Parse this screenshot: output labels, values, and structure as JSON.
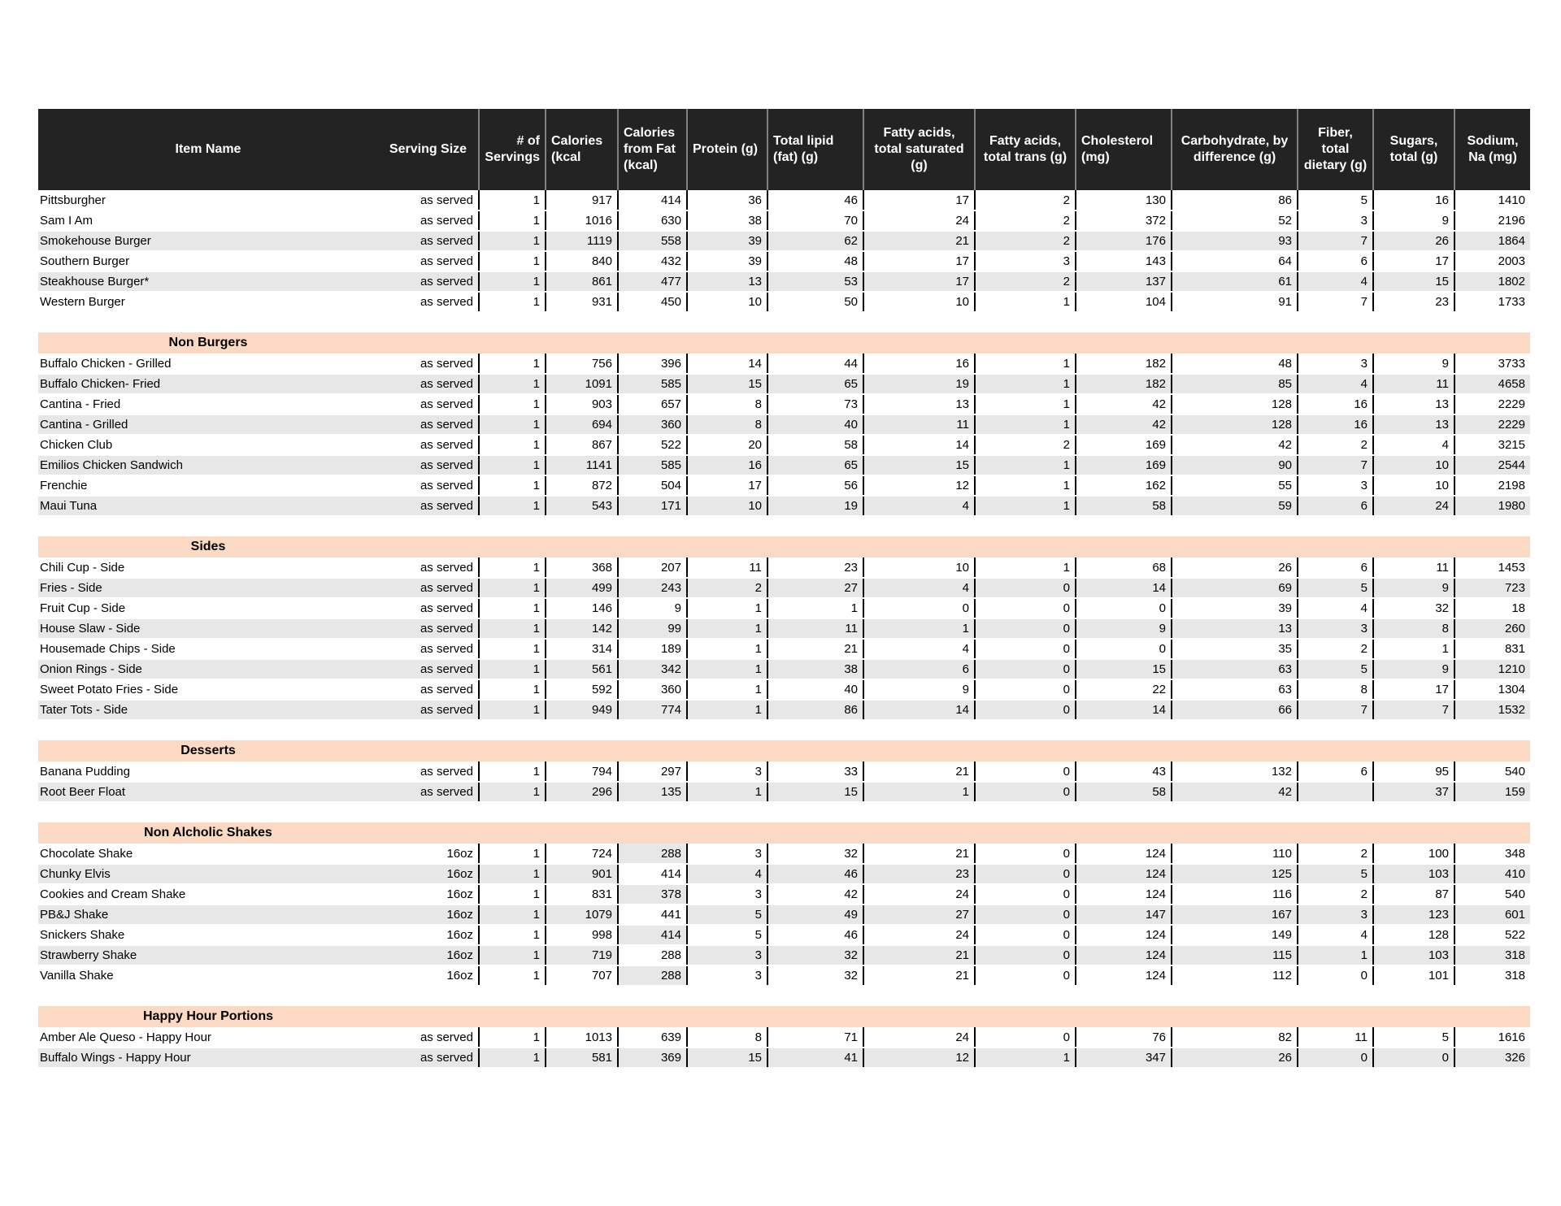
{
  "colors": {
    "header_bg": "#232323",
    "header_text": "#ffffff",
    "row_stripe": "#e7e7e7",
    "section_header_bg": "#fbd9c3",
    "body_divider": "#000000",
    "header_divider": "#808080"
  },
  "table": {
    "columns": [
      "Item Name",
      "Serving Size",
      "# of Servings",
      "Calories (kcal",
      "Calories from Fat (kcal)",
      "Protein (g)",
      "Total lipid (fat) (g)",
      "Fatty acids, total saturated (g)",
      "Fatty acids, total trans (g)",
      "Cholesterol (mg)",
      "Carbohydrate, by difference (g)",
      "Fiber, total dietary (g)",
      "Sugars, total (g)",
      "Sodium, Na (mg)"
    ],
    "sections": [
      {
        "name": "",
        "rows": [
          {
            "item": "Pittsburgher",
            "serving": "as served",
            "shaded": false,
            "values": [
              "1",
              "917",
              "414",
              "36",
              "46",
              "17",
              "2",
              "130",
              "86",
              "5",
              "16",
              "1410"
            ]
          },
          {
            "item": "Sam I Am",
            "serving": "as served",
            "shaded": false,
            "values": [
              "1",
              "1016",
              "630",
              "38",
              "70",
              "24",
              "2",
              "372",
              "52",
              "3",
              "9",
              "2196"
            ]
          },
          {
            "item": "Smokehouse Burger",
            "serving": "as served",
            "shaded": true,
            "values": [
              "1",
              "1119",
              "558",
              "39",
              "62",
              "21",
              "2",
              "176",
              "93",
              "7",
              "26",
              "1864"
            ]
          },
          {
            "item": "Southern Burger",
            "serving": "as served",
            "shaded": false,
            "values": [
              "1",
              "840",
              "432",
              "39",
              "48",
              "17",
              "3",
              "143",
              "64",
              "6",
              "17",
              "2003"
            ]
          },
          {
            "item": "Steakhouse Burger*",
            "serving": "as served",
            "shaded": true,
            "values": [
              "1",
              "861",
              "477",
              "13",
              "53",
              "17",
              "2",
              "137",
              "61",
              "4",
              "15",
              "1802"
            ]
          },
          {
            "item": "Western Burger",
            "serving": "as served",
            "shaded": false,
            "values": [
              "1",
              "931",
              "450",
              "10",
              "50",
              "10",
              "1",
              "104",
              "91",
              "7",
              "23",
              "1733"
            ]
          }
        ]
      },
      {
        "name": "Non Burgers",
        "rows": [
          {
            "item": "Buffalo Chicken - Grilled",
            "serving": "as served",
            "shaded": false,
            "values": [
              "1",
              "756",
              "396",
              "14",
              "44",
              "16",
              "1",
              "182",
              "48",
              "3",
              "9",
              "3733"
            ]
          },
          {
            "item": "Buffalo Chicken- Fried",
            "serving": "as served",
            "shaded": true,
            "values": [
              "1",
              "1091",
              "585",
              "15",
              "65",
              "19",
              "1",
              "182",
              "85",
              "4",
              "11",
              "4658"
            ]
          },
          {
            "item": "Cantina - Fried",
            "serving": "as served",
            "shaded": false,
            "values": [
              "1",
              "903",
              "657",
              "8",
              "73",
              "13",
              "1",
              "42",
              "128",
              "16",
              "13",
              "2229"
            ]
          },
          {
            "item": "Cantina - Grilled",
            "serving": "as served",
            "shaded": true,
            "values": [
              "1",
              "694",
              "360",
              "8",
              "40",
              "11",
              "1",
              "42",
              "128",
              "16",
              "13",
              "2229"
            ]
          },
          {
            "item": "Chicken Club",
            "serving": "as served",
            "shaded": false,
            "values": [
              "1",
              "867",
              "522",
              "20",
              "58",
              "14",
              "2",
              "169",
              "42",
              "2",
              "4",
              "3215"
            ]
          },
          {
            "item": "Emilios Chicken Sandwich",
            "serving": "as served",
            "shaded": true,
            "values": [
              "1",
              "1141",
              "585",
              "16",
              "65",
              "15",
              "1",
              "169",
              "90",
              "7",
              "10",
              "2544"
            ]
          },
          {
            "item": "Frenchie",
            "serving": "as served",
            "shaded": false,
            "values": [
              "1",
              "872",
              "504",
              "17",
              "56",
              "12",
              "1",
              "162",
              "55",
              "3",
              "10",
              "2198"
            ]
          },
          {
            "item": "Maui Tuna",
            "serving": "as served",
            "shaded": true,
            "values": [
              "1",
              "543",
              "171",
              "10",
              "19",
              "4",
              "1",
              "58",
              "59",
              "6",
              "24",
              "1980"
            ]
          }
        ]
      },
      {
        "name": "Sides",
        "rows": [
          {
            "item": "Chili Cup - Side",
            "serving": "as served",
            "shaded": false,
            "values": [
              "1",
              "368",
              "207",
              "11",
              "23",
              "10",
              "1",
              "68",
              "26",
              "6",
              "11",
              "1453"
            ]
          },
          {
            "item": "Fries - Side",
            "serving": "as served",
            "shaded": true,
            "values": [
              "1",
              "499",
              "243",
              "2",
              "27",
              "4",
              "0",
              "14",
              "69",
              "5",
              "9",
              "723"
            ]
          },
          {
            "item": "Fruit Cup - Side",
            "serving": "as served",
            "shaded": false,
            "values": [
              "1",
              "146",
              "9",
              "1",
              "1",
              "0",
              "0",
              "0",
              "39",
              "4",
              "32",
              "18"
            ]
          },
          {
            "item": "House Slaw - Side",
            "serving": "as served",
            "shaded": true,
            "values": [
              "1",
              "142",
              "99",
              "1",
              "11",
              "1",
              "0",
              "9",
              "13",
              "3",
              "8",
              "260"
            ]
          },
          {
            "item": "Housemade Chips - Side",
            "serving": "as served",
            "shaded": false,
            "values": [
              "1",
              "314",
              "189",
              "1",
              "21",
              "4",
              "0",
              "0",
              "35",
              "2",
              "1",
              "831"
            ]
          },
          {
            "item": "Onion Rings - Side",
            "serving": "as served",
            "shaded": true,
            "values": [
              "1",
              "561",
              "342",
              "1",
              "38",
              "6",
              "0",
              "15",
              "63",
              "5",
              "9",
              "1210"
            ]
          },
          {
            "item": "Sweet Potato Fries - Side",
            "serving": "as served",
            "shaded": false,
            "values": [
              "1",
              "592",
              "360",
              "1",
              "40",
              "9",
              "0",
              "22",
              "63",
              "8",
              "17",
              "1304"
            ]
          },
          {
            "item": "Tater Tots - Side",
            "serving": "as served",
            "shaded": true,
            "values": [
              "1",
              "949",
              "774",
              "1",
              "86",
              "14",
              "0",
              "14",
              "66",
              "7",
              "7",
              "1532"
            ]
          }
        ]
      },
      {
        "name": "Desserts",
        "rows": [
          {
            "item": "Banana Pudding",
            "serving": "as served",
            "shaded": false,
            "values": [
              "1",
              "794",
              "297",
              "3",
              "33",
              "21",
              "0",
              "43",
              "132",
              "6",
              "95",
              "540"
            ]
          },
          {
            "item": "Root Beer Float",
            "serving": "as served",
            "shaded": true,
            "values": [
              "1",
              "296",
              "135",
              "1",
              "15",
              "1",
              "0",
              "58",
              "42",
              "",
              "37",
              "159"
            ]
          }
        ]
      },
      {
        "name": "Non Alcholic Shakes",
        "calories_from_fat_shading_inverted": true,
        "rows": [
          {
            "item": "Chocolate Shake",
            "serving": "16oz",
            "shaded": false,
            "values": [
              "1",
              "724",
              "288",
              "3",
              "32",
              "21",
              "0",
              "124",
              "110",
              "2",
              "100",
              "348"
            ]
          },
          {
            "item": "Chunky Elvis",
            "serving": "16oz",
            "shaded": true,
            "values": [
              "1",
              "901",
              "414",
              "4",
              "46",
              "23",
              "0",
              "124",
              "125",
              "5",
              "103",
              "410"
            ]
          },
          {
            "item": "Cookies and Cream Shake",
            "serving": "16oz",
            "shaded": false,
            "values": [
              "1",
              "831",
              "378",
              "3",
              "42",
              "24",
              "0",
              "124",
              "116",
              "2",
              "87",
              "540"
            ]
          },
          {
            "item": "PB&J Shake",
            "serving": "16oz",
            "shaded": true,
            "values": [
              "1",
              "1079",
              "441",
              "5",
              "49",
              "27",
              "0",
              "147",
              "167",
              "3",
              "123",
              "601"
            ]
          },
          {
            "item": "Snickers Shake",
            "serving": "16oz",
            "shaded": false,
            "values": [
              "1",
              "998",
              "414",
              "5",
              "46",
              "24",
              "0",
              "124",
              "149",
              "4",
              "128",
              "522"
            ]
          },
          {
            "item": "Strawberry Shake",
            "serving": "16oz",
            "shaded": true,
            "values": [
              "1",
              "719",
              "288",
              "3",
              "32",
              "21",
              "0",
              "124",
              "115",
              "1",
              "103",
              "318"
            ]
          },
          {
            "item": "Vanilla Shake",
            "serving": "16oz",
            "shaded": false,
            "values": [
              "1",
              "707",
              "288",
              "3",
              "32",
              "21",
              "0",
              "124",
              "112",
              "0",
              "101",
              "318"
            ]
          }
        ]
      },
      {
        "name": "Happy Hour Portions",
        "rows": [
          {
            "item": "Amber Ale Queso - Happy Hour",
            "serving": "as served",
            "shaded": false,
            "values": [
              "1",
              "1013",
              "639",
              "8",
              "71",
              "24",
              "0",
              "76",
              "82",
              "11",
              "5",
              "1616"
            ]
          },
          {
            "item": "Buffalo Wings - Happy Hour",
            "serving": "as served",
            "shaded": true,
            "values": [
              "1",
              "581",
              "369",
              "15",
              "41",
              "12",
              "1",
              "347",
              "26",
              "0",
              "0",
              "326"
            ]
          }
        ]
      }
    ]
  }
}
